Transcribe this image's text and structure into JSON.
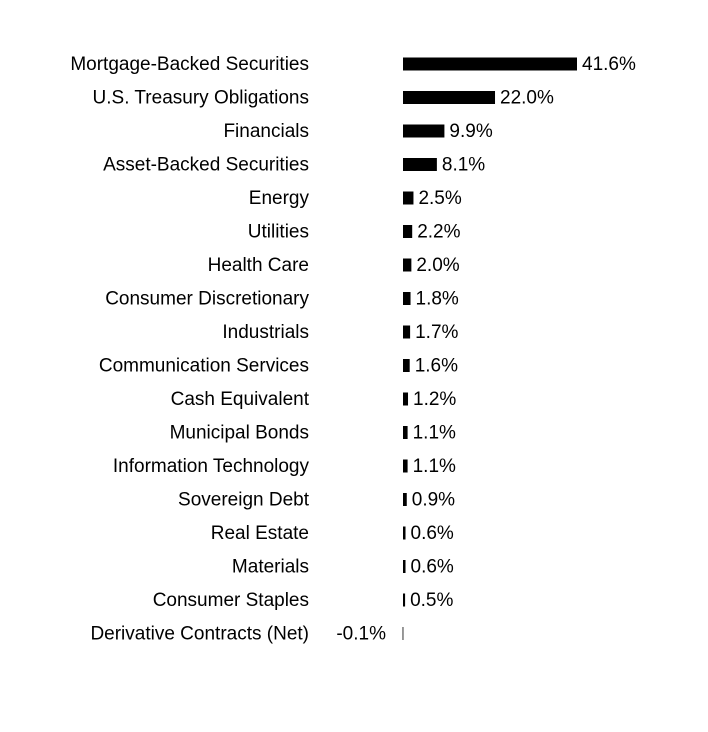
{
  "chart_data": {
    "type": "bar",
    "orientation": "horizontal",
    "color": "#000000",
    "categories": [
      "Mortgage-Backed Securities",
      "U.S. Treasury Obligations",
      "Financials",
      "Asset-Backed Securities",
      "Energy",
      "Utilities",
      "Health Care",
      "Consumer Discretionary",
      "Industrials",
      "Communication Services",
      "Cash Equivalent",
      "Municipal Bonds",
      "Information Technology",
      "Sovereign Debt",
      "Real Estate",
      "Materials",
      "Consumer Staples",
      "Derivative Contracts (Net)"
    ],
    "values": [
      41.6,
      22.0,
      9.9,
      8.1,
      2.5,
      2.2,
      2.0,
      1.8,
      1.7,
      1.6,
      1.2,
      1.1,
      1.1,
      0.9,
      0.6,
      0.6,
      0.5,
      -0.1
    ],
    "value_labels": [
      "41.6%",
      "22.0%",
      "9.9%",
      "8.1%",
      "2.5%",
      "2.2%",
      "2.0%",
      "1.8%",
      "1.7%",
      "1.6%",
      "1.2%",
      "1.1%",
      "1.1%",
      "0.9%",
      "0.6%",
      "0.6%",
      "0.5%",
      "-0.1%"
    ]
  }
}
